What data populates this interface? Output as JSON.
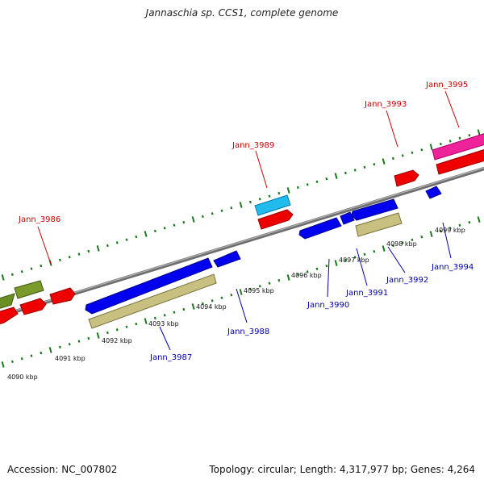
{
  "title": "Jannaschia sp. CCS1, complete genome",
  "footer": {
    "accession": "Accession: NC_007802",
    "summary": "Topology: circular; Length: 4,317,977 bp; Genes: 4,264"
  },
  "colors": {
    "backbone": "#8a8a8a",
    "tick": "#1a7a1a",
    "forward_label": "#cc0000",
    "reverse_label": "#0000aa"
  },
  "kbp_labels": [
    "4090 kbp",
    "4091 kbp",
    "4092 kbp",
    "4093 kbp",
    "4094 kbp",
    "4095 kbp",
    "4096 kbp",
    "4097 kbp",
    "4098 kbp",
    "4099 kbp"
  ],
  "gene_labels": {
    "jann_3986": "Jann_3986",
    "jann_3987": "Jann_3987",
    "jann_3988": "Jann_3988",
    "jann_3989": "Jann_3989",
    "jann_3990": "Jann_3990",
    "jann_3991": "Jann_3991",
    "jann_3992": "Jann_3992",
    "jann_3993": "Jann_3993",
    "jann_3994": "Jann_3994",
    "jann_3995": "Jann_3995"
  }
}
